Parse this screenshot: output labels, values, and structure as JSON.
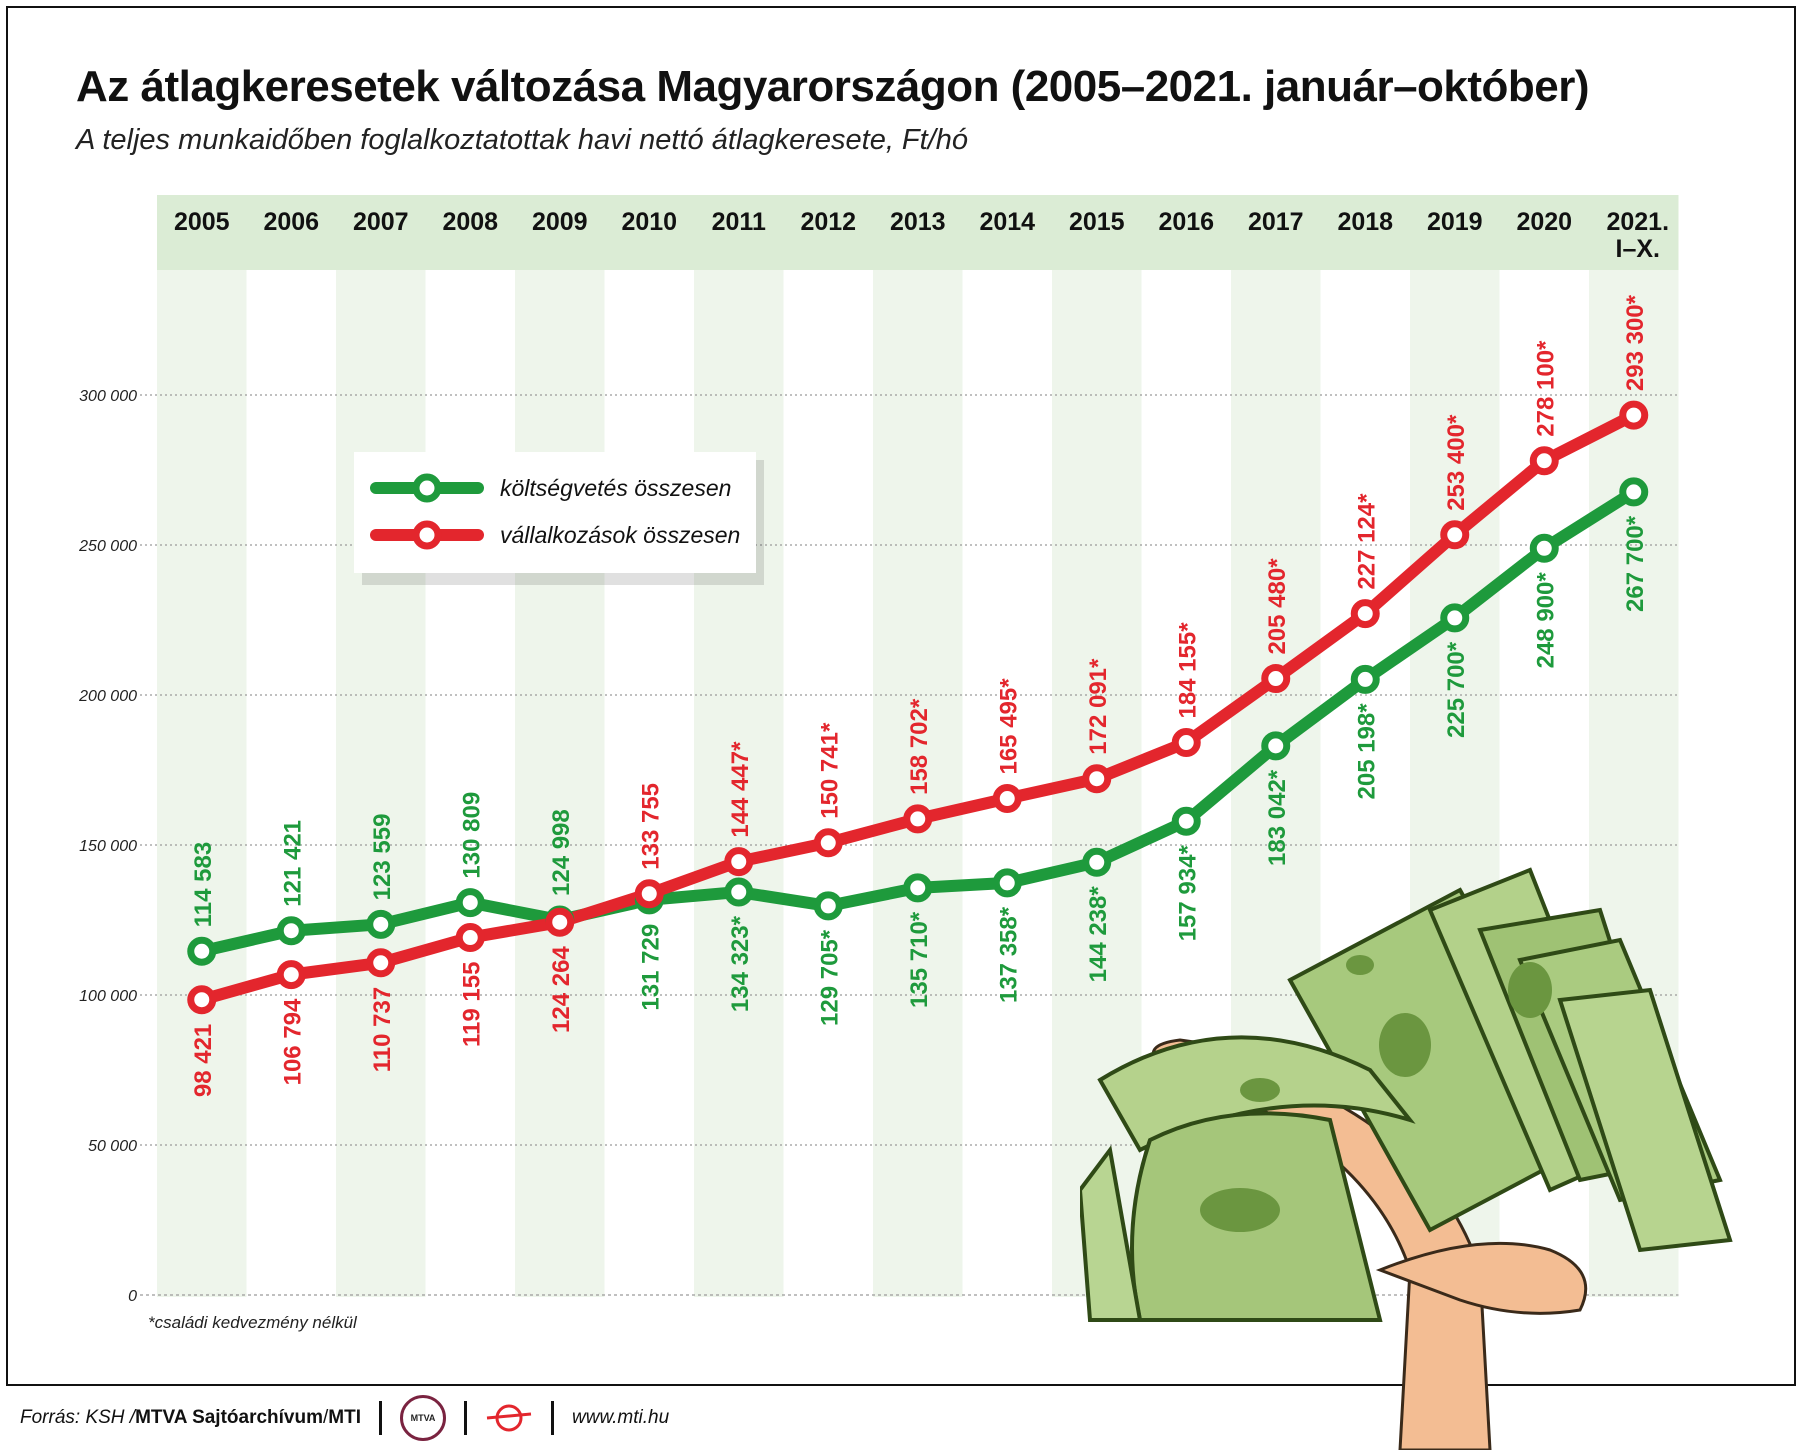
{
  "title": "Az átlagkeresetek változása Magyarországon (2005–2021. január–október)",
  "subtitle": "A teljes munkaidőben foglalkoztatottak havi nettó átlagkeresete, Ft/hó",
  "footnote": "*családi kedvezmény nélkül",
  "footer": {
    "source_prefix": "Forrás: KSH / ",
    "source_bold": "MTVA Sajtóarchívum",
    "source_mid": " / ",
    "source_bold2": "MTI",
    "logo_mtva_text": "MTVA",
    "url": "www.mti.hu"
  },
  "colors": {
    "green": "#1e9a3c",
    "red": "#e3262d",
    "band": "#eef5eb",
    "header_band": "#dbecd5"
  },
  "chart_data": {
    "type": "line",
    "title": "Az átlagkeresetek változása Magyarországon (2005–2021. január–október)",
    "subtitle": "A teljes munkaidőben foglalkoztatottak havi nettó átlagkeresete, Ft/hó",
    "categories": [
      "2005",
      "2006",
      "2007",
      "2008",
      "2009",
      "2010",
      "2011",
      "2012",
      "2013",
      "2014",
      "2015",
      "2016",
      "2017",
      "2018",
      "2019",
      "2020",
      "2021. I–X."
    ],
    "ylim": [
      0,
      300000
    ],
    "yticks": [
      0,
      50000,
      100000,
      150000,
      200000,
      250000,
      300000
    ],
    "ytick_labels": [
      "0",
      "50 000",
      "100 000",
      "150 000",
      "200 000",
      "250 000",
      "300 000"
    ],
    "grid": "horizontal dotted",
    "legend_position": "upper-left",
    "series": [
      {
        "name": "költségvetés összesen",
        "color": "#1e9a3c",
        "values": [
          114583,
          121421,
          123559,
          130809,
          124998,
          131729,
          134323,
          129705,
          135710,
          137358,
          144238,
          157934,
          183042,
          205198,
          225700,
          248900,
          267700
        ],
        "labels": [
          "114 583",
          "121 421",
          "123 559",
          "130 809",
          "124 998",
          "131 729",
          "134 323*",
          "129 705*",
          "135 710*",
          "137 358*",
          "144 238*",
          "157 934*",
          "183 042*",
          "205 198*",
          "225 700*",
          "248 900*",
          "267 700*"
        ],
        "label_side": [
          "above",
          "above",
          "above",
          "above",
          "above",
          "below",
          "below",
          "below",
          "below",
          "below",
          "below",
          "below",
          "below",
          "below",
          "below",
          "below",
          "below"
        ]
      },
      {
        "name": "vállalkozások összesen",
        "color": "#e3262d",
        "values": [
          98421,
          106794,
          110737,
          119155,
          124264,
          133755,
          144447,
          150741,
          158702,
          165495,
          172091,
          184155,
          205480,
          227124,
          253400,
          278100,
          293300
        ],
        "labels": [
          "98 421",
          "106 794",
          "110 737",
          "119 155",
          "124 264",
          "133 755",
          "144 447*",
          "150 741*",
          "158 702*",
          "165 495*",
          "172 091*",
          "184 155*",
          "205 480*",
          "227 124*",
          "253 400*",
          "278 100*",
          "293 300*"
        ],
        "label_side": [
          "below",
          "below",
          "below",
          "below",
          "below",
          "above",
          "above",
          "above",
          "above",
          "above",
          "above",
          "above",
          "above",
          "above",
          "above",
          "above",
          "above"
        ]
      }
    ]
  }
}
